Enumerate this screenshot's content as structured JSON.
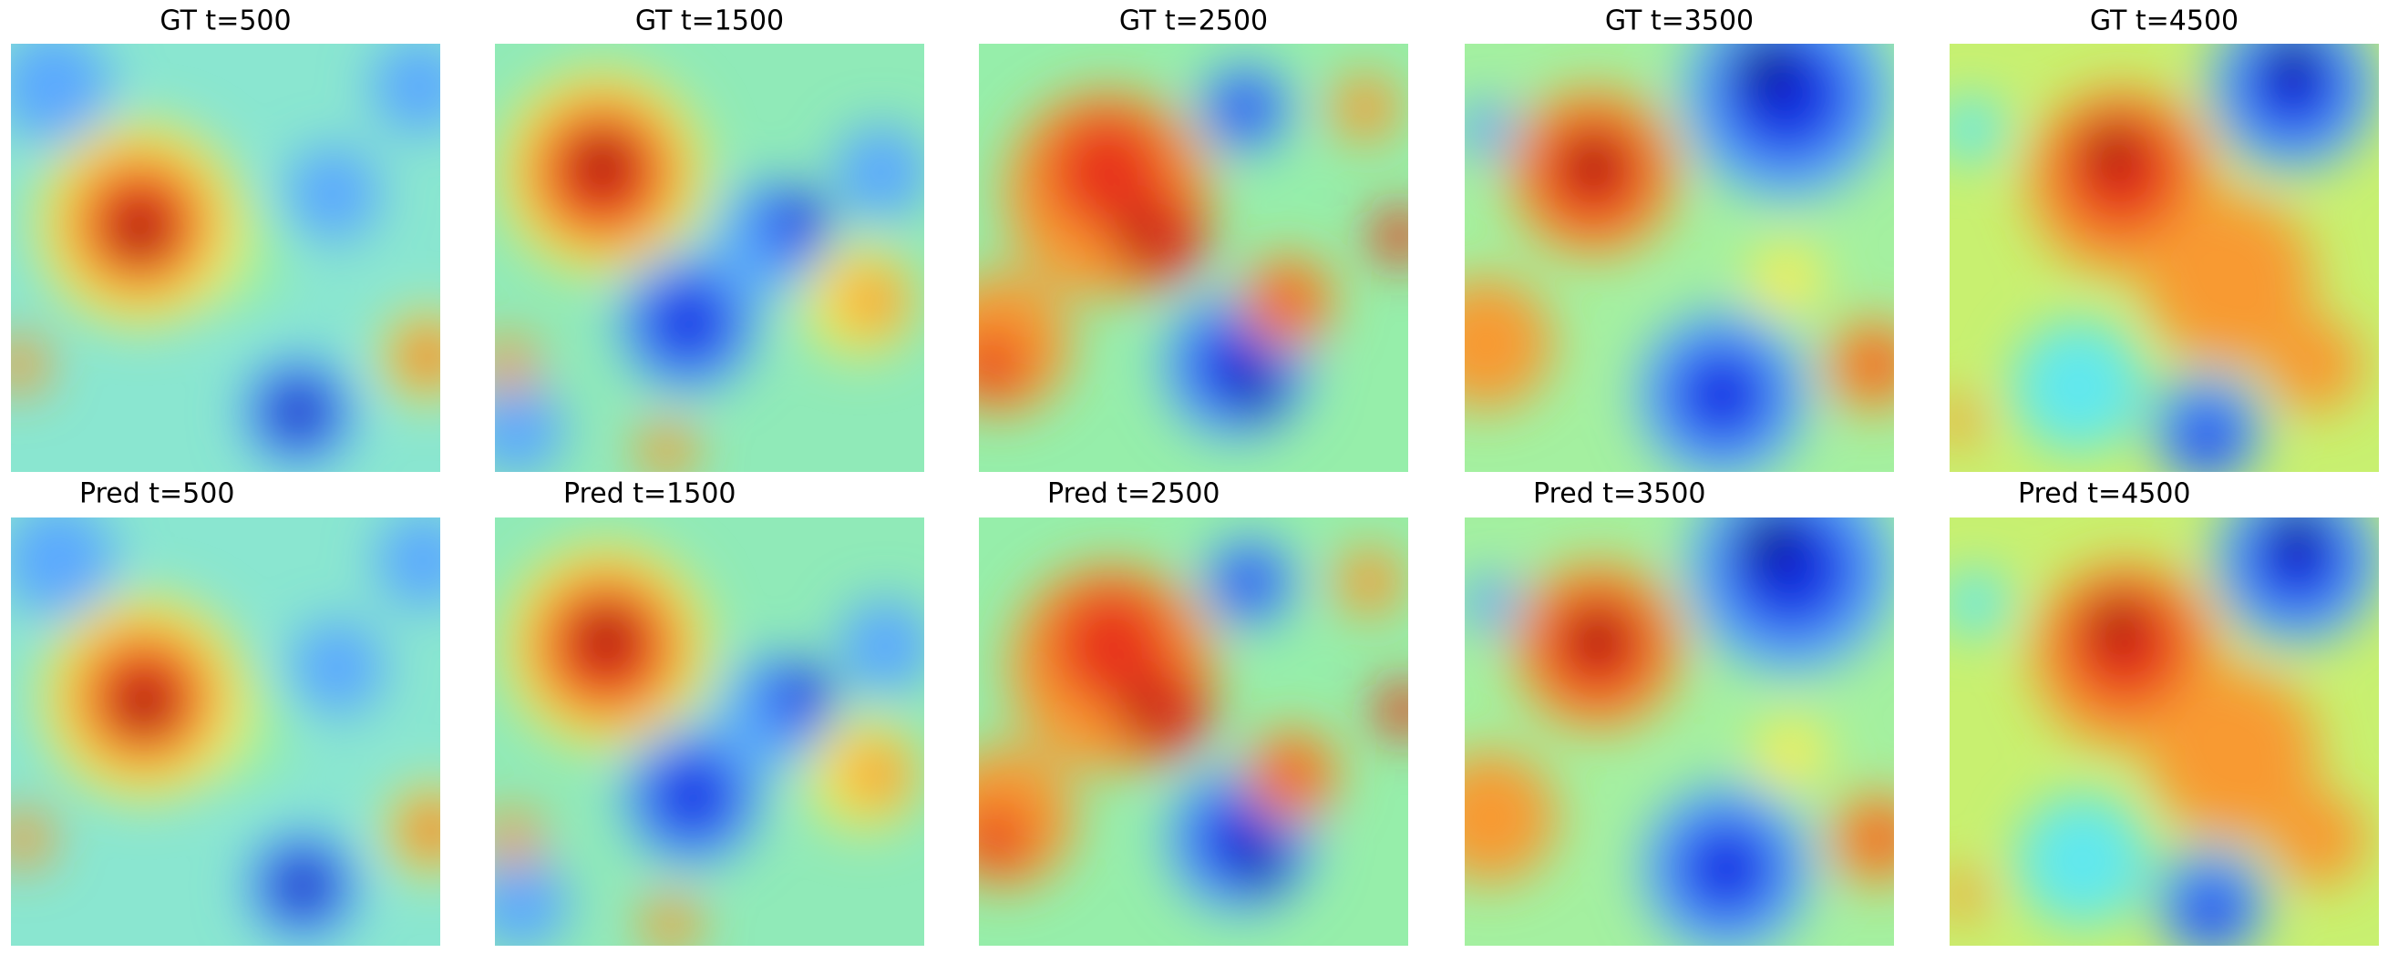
{
  "figure": {
    "rows": [
      {
        "titles": [
          "GT t=500",
          "GT t=1500",
          "GT t=2500",
          "GT t=3500",
          "GT t=4500"
        ]
      },
      {
        "titles": [
          "Pred t=500",
          "Pred t=1500",
          "Pred t=2500",
          "Pred t=3500",
          "Pred t=4500"
        ]
      }
    ]
  }
}
